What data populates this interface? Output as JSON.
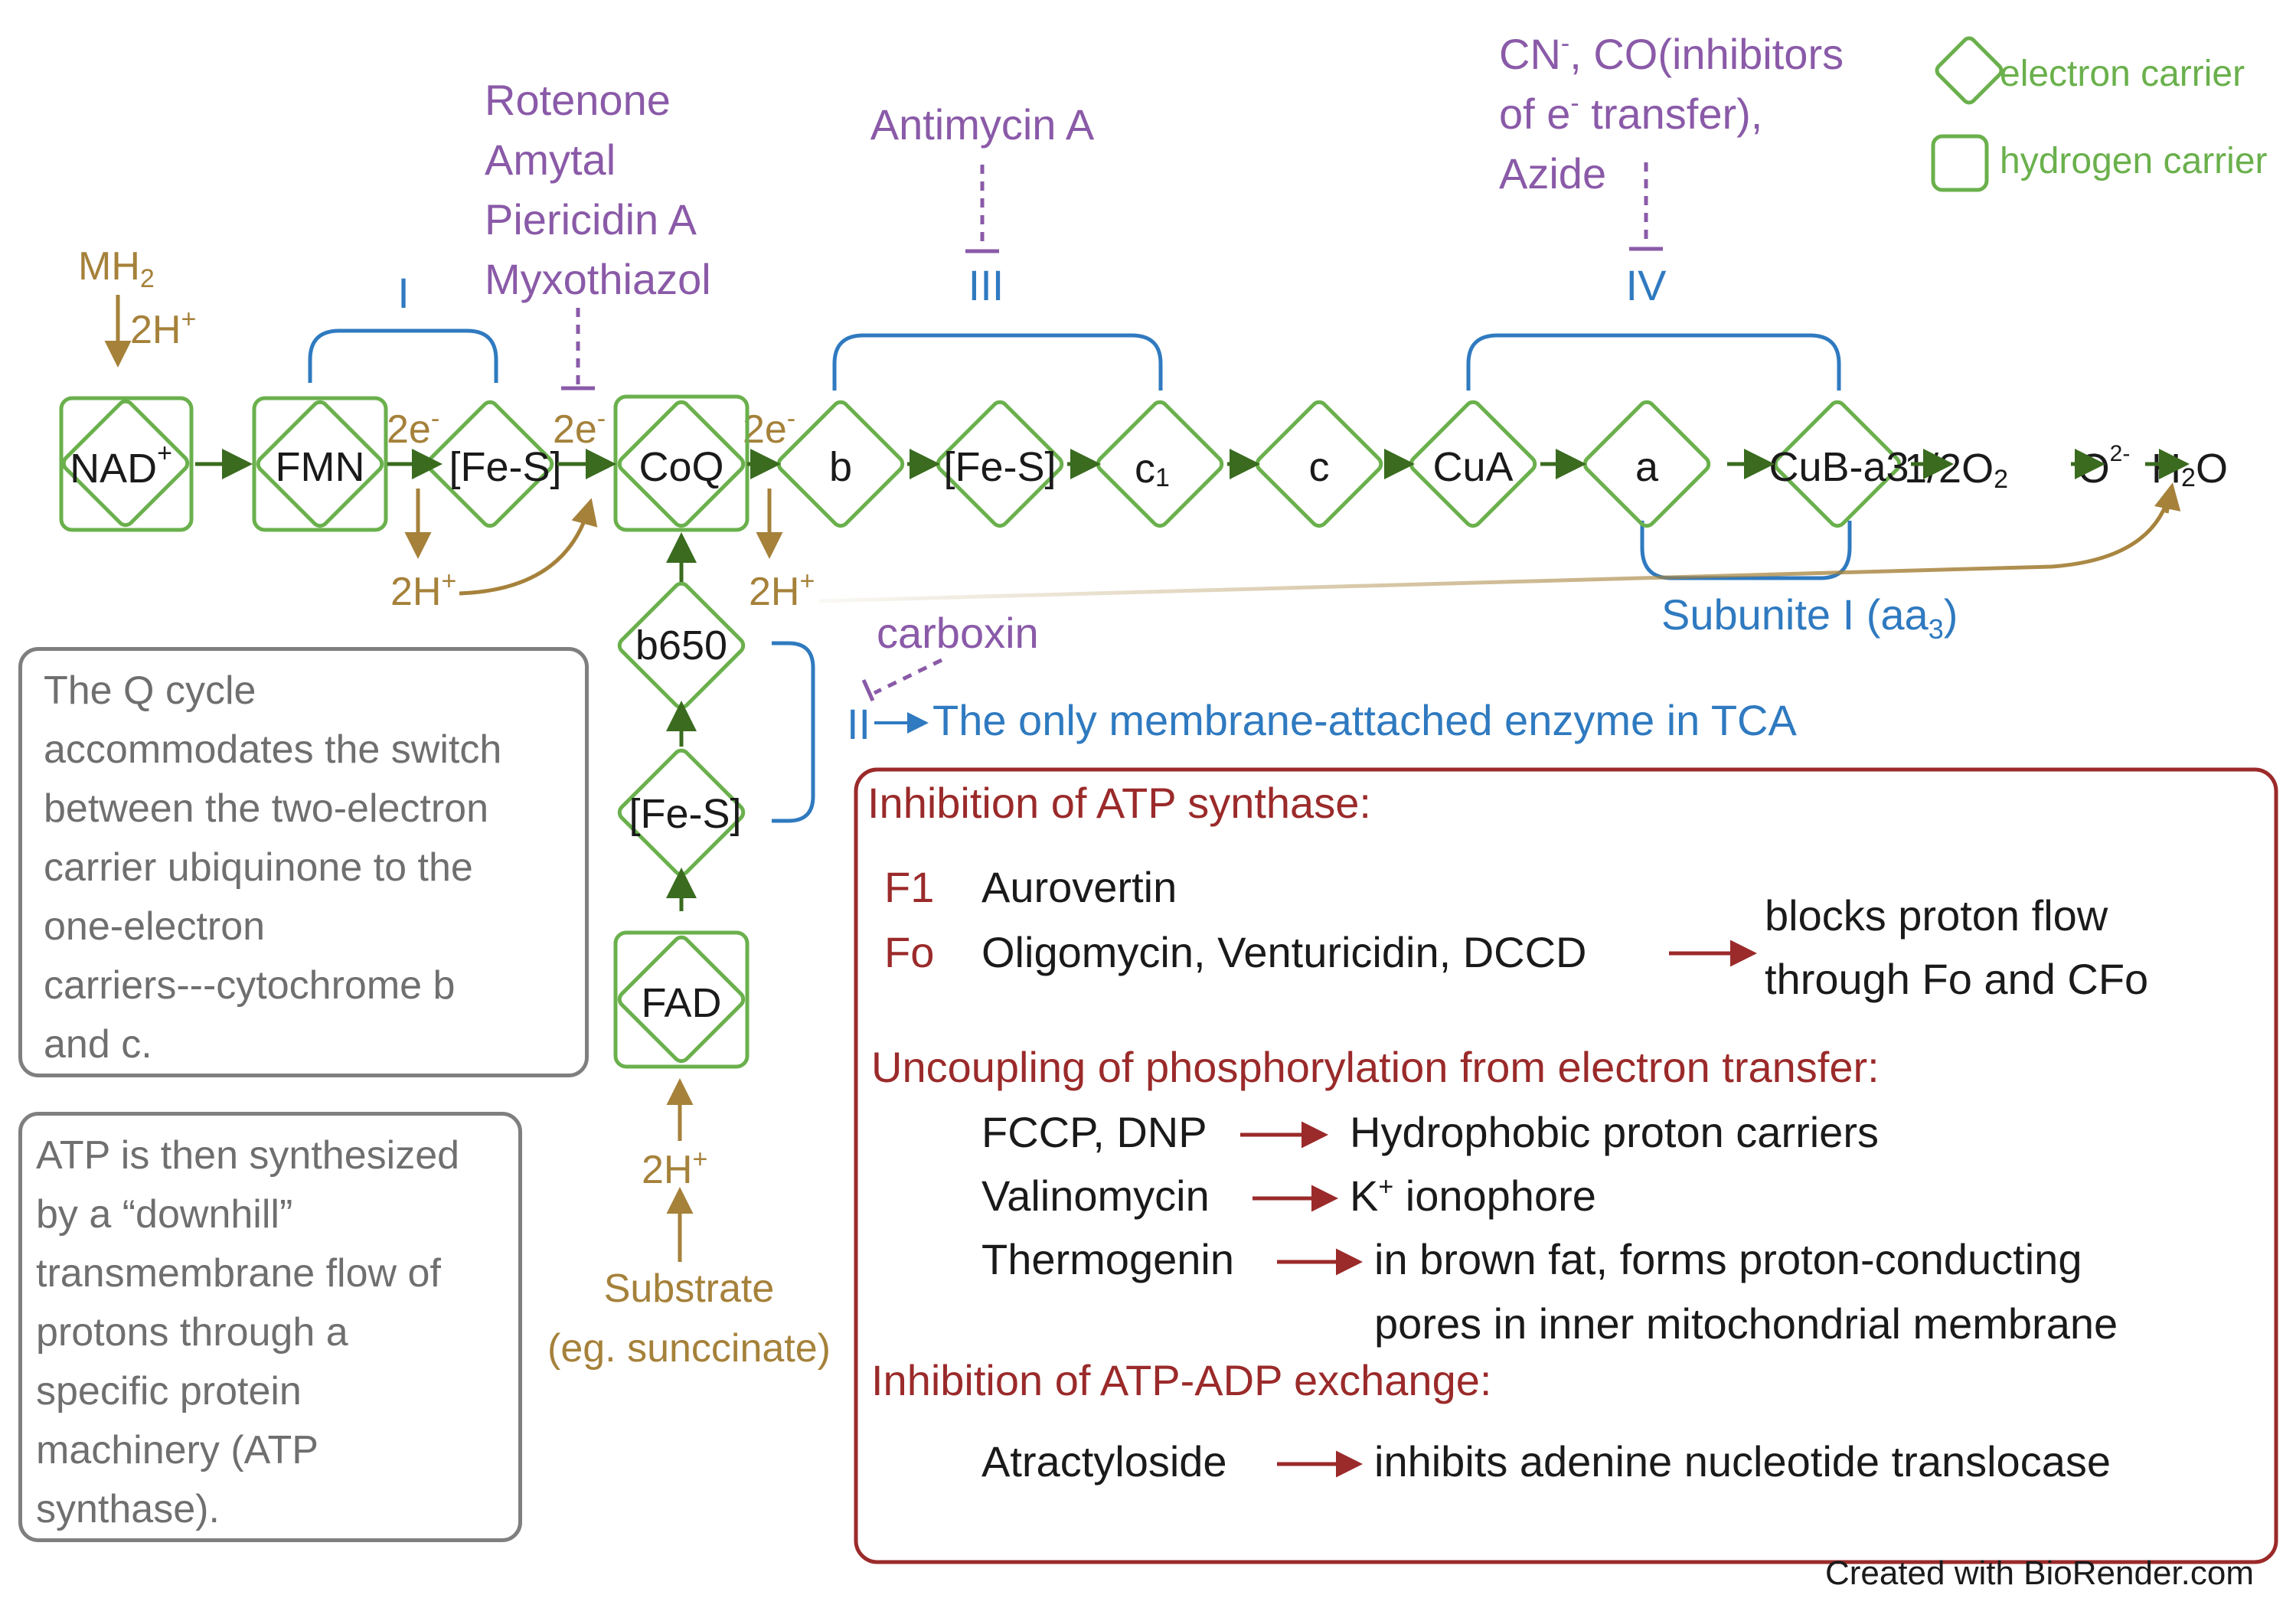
{
  "chain": {
    "nad": "NAD",
    "nad_sup": "+",
    "fmn": "FMN",
    "fes1": "[Fe-S]",
    "coq": "CoQ",
    "b": "b",
    "fes3": "[Fe-S]",
    "c1": "c",
    "c1_sub": "1",
    "c": "c",
    "cua": "CuA",
    "a": "a",
    "cuba3": "CuB-a3",
    "half_o2": "1/2O",
    "half_o2_sub": "2",
    "o2m": "O",
    "o2m_sup": "2-",
    "h2o_h": "H",
    "h2o_sub": "2",
    "h2o_o": "O",
    "b650": "b650",
    "fes2": "[Fe-S]",
    "fad": "FAD"
  },
  "labels": {
    "mh2": "MH",
    "mh2_sub": "2",
    "twoH_plus": "2H",
    "plus": "+",
    "two_e": "2e",
    "minus": "-",
    "complex_I": "I",
    "complex_II": "II",
    "complex_III": "III",
    "complex_IV": "IV",
    "subunit": "Subunite I (aa",
    "subunit_sub": "3",
    "subunit_close": ")",
    "substrate_1": "Substrate",
    "substrate_2": "(eg. sunccinate)"
  },
  "inhibitors": {
    "complex_I": [
      "Rotenone",
      "Amytal",
      "Piericidin A",
      "Myxothiazol"
    ],
    "complex_III": "Antimycin A",
    "complex_IV_1a": "CN",
    "complex_IV_1b": ", CO(inhibitors",
    "complex_IV_2a": "of e",
    "complex_IV_2b": " transfer),",
    "complex_IV_3": "Azide",
    "complex_II": "carboxin"
  },
  "complex_II_note": "The only membrane-attached enzyme in TCA",
  "legend": {
    "electron_carrier": "electron carrier",
    "hydrogen_carrier": "hydrogen carrier"
  },
  "q_cycle_box": [
    "The Q cycle",
    "accommodates the switch",
    "between the two-electron",
    "carrier ubiquinone to the",
    "one-electron",
    "carriers---cytochrome b",
    "and c."
  ],
  "atp_box": [
    "ATP is then synthesized",
    "by a “downhill”",
    "transmembrane flow of",
    "protons through a",
    "specific protein",
    "machinery (ATP",
    "synthase)."
  ],
  "red_box": {
    "inhibition_atp_synthase": "Inhibition of ATP synthase:",
    "f1": "F1",
    "f1_agent": "Aurovertin",
    "fo": "Fo",
    "fo_agents": "Oligomycin, Venturicidin, DCCD",
    "fo_effect_1": "blocks proton flow",
    "fo_effect_2": "through Fo and CFo",
    "uncoupling": "Uncoupling of phosphorylation from electron transfer:",
    "fccp": "FCCP, DNP",
    "fccp_effect": "Hydrophobic proton carriers",
    "valinomycin": "Valinomycin",
    "valinomycin_effect_k": "K",
    "valinomycin_effect_rest": " ionophore",
    "thermogenin": "Thermogenin",
    "thermogenin_effect_1": "in brown fat, forms proton-conducting",
    "thermogenin_effect_2": "pores in inner mitochondrial membrane",
    "atp_adp": "Inhibition of ATP-ADP exchange:",
    "atractyloside": "Atractyloside",
    "atractyloside_effect": "inhibits adenine nucleotide translocase"
  },
  "credit": "Created with BioRender.com",
  "colors": {
    "green": "#6ab04c",
    "arrow_green": "#3a6b1f",
    "brown": "#a5813a",
    "purple": "#8a5aa8",
    "blue": "#2f7ac0",
    "red": "#9b2a2a",
    "gray": "#7f7f7f"
  }
}
